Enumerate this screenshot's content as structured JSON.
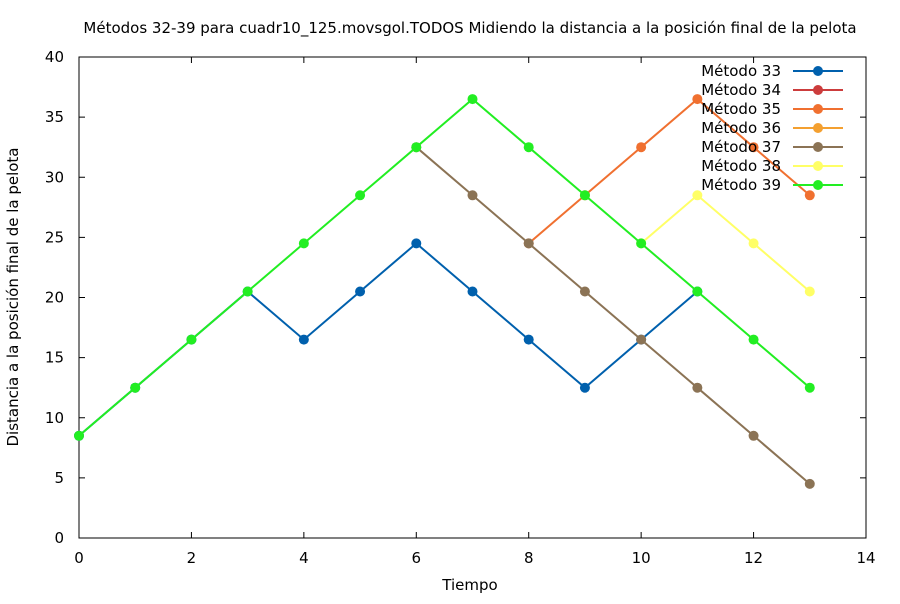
{
  "chart_data": {
    "type": "line",
    "title": "Métodos 32-39 para cuadr10_125.movsgol.TODOS Midiendo la distancia a la posición final de la pelota",
    "xlabel": "Tiempo",
    "ylabel": "Distancia a la posición final de la pelota",
    "xlim": [
      0,
      14
    ],
    "ylim": [
      0,
      40
    ],
    "xticks": [
      0,
      2,
      4,
      6,
      8,
      10,
      12,
      14
    ],
    "yticks": [
      0,
      5,
      10,
      15,
      20,
      25,
      30,
      35,
      40
    ],
    "grid": false,
    "legend_position": "top-right",
    "series": [
      {
        "name": "Método 33",
        "color": "#0060ad",
        "x": [
          0,
          1,
          2,
          3,
          4,
          5,
          6,
          7,
          8,
          9,
          10,
          11
        ],
        "y": [
          8.5,
          12.5,
          16.5,
          20.5,
          16.5,
          20.5,
          24.5,
          20.5,
          16.5,
          12.5,
          16.5,
          20.5
        ]
      },
      {
        "name": "Método 34",
        "color": "#cc3c3c",
        "x": [],
        "y": []
      },
      {
        "name": "Método 35",
        "color": "#f07030",
        "x": [
          8,
          9,
          10,
          11,
          12,
          13
        ],
        "y": [
          24.5,
          28.5,
          32.5,
          36.5,
          32.5,
          28.5
        ]
      },
      {
        "name": "Método 36",
        "color": "#f4a030",
        "x": [],
        "y": []
      },
      {
        "name": "Método 37",
        "color": "#8b7355",
        "x": [
          6,
          7,
          8,
          9,
          10,
          11,
          12,
          13
        ],
        "y": [
          32.5,
          28.5,
          24.5,
          20.5,
          16.5,
          12.5,
          8.5,
          4.5
        ]
      },
      {
        "name": "Método 38",
        "color": "#ffff66",
        "x": [
          10,
          11,
          12,
          13
        ],
        "y": [
          24.5,
          28.5,
          24.5,
          20.5
        ]
      },
      {
        "name": "Método 39",
        "color": "#22ee22",
        "x": [
          0,
          1,
          2,
          3,
          4,
          5,
          6,
          7,
          8,
          9,
          10,
          11,
          12,
          13
        ],
        "y": [
          8.5,
          12.5,
          16.5,
          20.5,
          24.5,
          28.5,
          32.5,
          36.5,
          32.5,
          28.5,
          24.5,
          20.5,
          16.5,
          12.5
        ]
      }
    ]
  }
}
